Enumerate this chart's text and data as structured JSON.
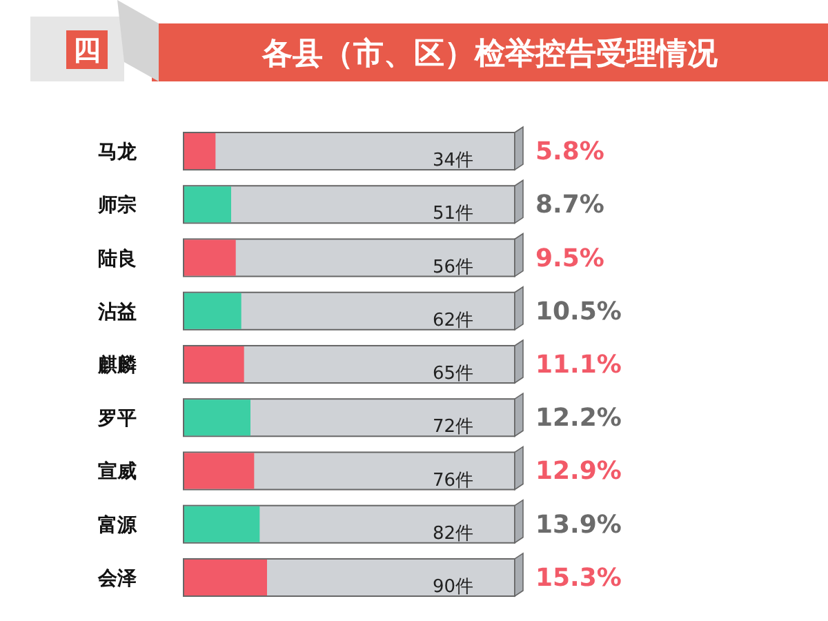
{
  "chart_data": {
    "type": "bar",
    "orientation": "horizontal",
    "title": "各县（市、区）检举控告受理情况",
    "categories": [
      "马龙",
      "师宗",
      "陆良",
      "沾益",
      "麒麟",
      "罗平",
      "宣威",
      "富源",
      "会泽"
    ],
    "values": [
      34,
      51,
      56,
      62,
      65,
      72,
      76,
      82,
      90
    ],
    "colors": [
      "#f25a68",
      "#3ccfa4",
      "#f25a68",
      "#3ccfa4",
      "#f25a68",
      "#3ccfa4",
      "#f25a68",
      "#3ccfa4",
      "#f25a68"
    ],
    "value_labels": [
      "34件",
      "51件",
      "56件",
      "62件",
      "65件",
      "72件",
      "76件",
      "82件",
      "90件"
    ],
    "annotations": [
      "四",
      "5.8%",
      "8.7%",
      "9.5%",
      "10.5%",
      "11.1%",
      "12.2%",
      "12.9%",
      "13.9%",
      "15.3%"
    ]
  }
}
